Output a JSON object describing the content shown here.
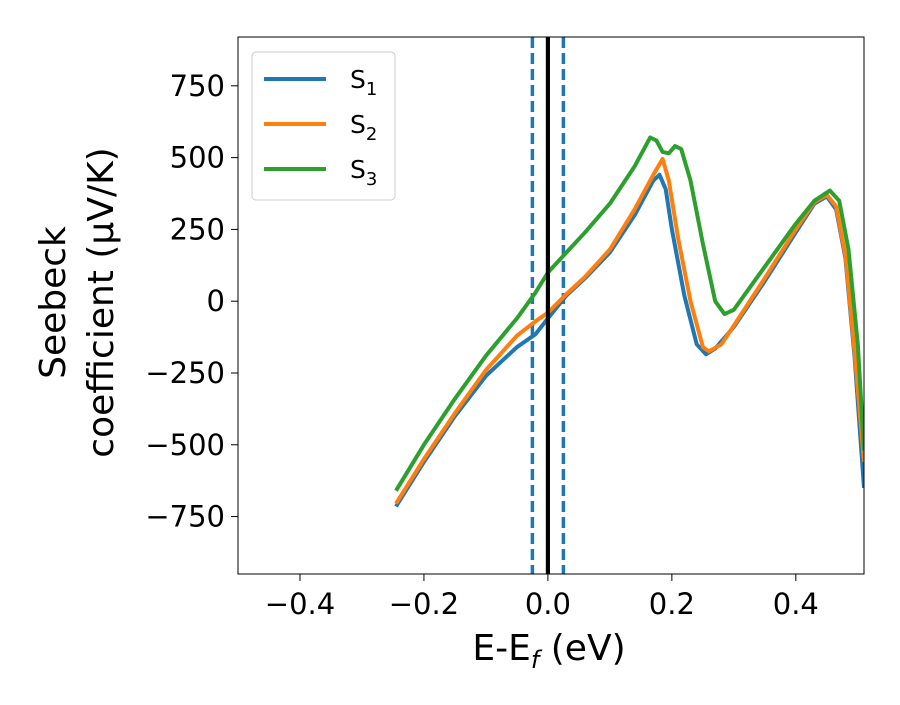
{
  "chart_data": {
    "type": "line",
    "title": "",
    "xlabel": "E-E",
    "xlabel_sub": "f",
    "xlabel_unit": " (eV)",
    "ylabel_line1": "Seebeck",
    "ylabel_line2": "coefficient  (μV/K)",
    "xlim": [
      -0.5,
      0.51
    ],
    "ylim": [
      -950,
      920
    ],
    "xticks": [
      -0.4,
      -0.2,
      0.0,
      0.2,
      0.4
    ],
    "xtick_labels": [
      "−0.4",
      "−0.2",
      "0.0",
      "0.2",
      "0.4"
    ],
    "yticks": [
      750,
      500,
      250,
      0,
      -250,
      -500,
      -750
    ],
    "ytick_labels": [
      "750",
      "500",
      "250",
      "0",
      "−250",
      "−500",
      "−750"
    ],
    "grid": false,
    "legend_position": "top-left",
    "series": [
      {
        "name": "S",
        "name_sub": "1",
        "color": "#1f77b4",
        "points": [
          [
            -0.245,
            -715
          ],
          [
            -0.2,
            -560
          ],
          [
            -0.15,
            -400
          ],
          [
            -0.1,
            -260
          ],
          [
            -0.05,
            -160
          ],
          [
            -0.02,
            -115
          ],
          [
            0.0,
            -60
          ],
          [
            0.03,
            20
          ],
          [
            0.06,
            80
          ],
          [
            0.1,
            170
          ],
          [
            0.14,
            300
          ],
          [
            0.17,
            420
          ],
          [
            0.18,
            440
          ],
          [
            0.19,
            390
          ],
          [
            0.2,
            250
          ],
          [
            0.22,
            20
          ],
          [
            0.24,
            -150
          ],
          [
            0.255,
            -185
          ],
          [
            0.27,
            -165
          ],
          [
            0.3,
            -90
          ],
          [
            0.35,
            70
          ],
          [
            0.4,
            240
          ],
          [
            0.43,
            340
          ],
          [
            0.45,
            365
          ],
          [
            0.465,
            320
          ],
          [
            0.48,
            150
          ],
          [
            0.495,
            -200
          ],
          [
            0.51,
            -650
          ]
        ]
      },
      {
        "name": "S",
        "name_sub": "2",
        "color": "#ff7f0e",
        "points": [
          [
            -0.245,
            -705
          ],
          [
            -0.2,
            -550
          ],
          [
            -0.15,
            -390
          ],
          [
            -0.1,
            -240
          ],
          [
            -0.05,
            -120
          ],
          [
            -0.02,
            -70
          ],
          [
            0.0,
            -40
          ],
          [
            0.03,
            25
          ],
          [
            0.06,
            85
          ],
          [
            0.1,
            180
          ],
          [
            0.14,
            320
          ],
          [
            0.17,
            440
          ],
          [
            0.185,
            495
          ],
          [
            0.195,
            420
          ],
          [
            0.21,
            220
          ],
          [
            0.23,
            0
          ],
          [
            0.25,
            -160
          ],
          [
            0.26,
            -175
          ],
          [
            0.28,
            -150
          ],
          [
            0.3,
            -85
          ],
          [
            0.35,
            80
          ],
          [
            0.4,
            250
          ],
          [
            0.43,
            345
          ],
          [
            0.45,
            370
          ],
          [
            0.465,
            330
          ],
          [
            0.48,
            160
          ],
          [
            0.495,
            -180
          ],
          [
            0.51,
            -560
          ]
        ]
      },
      {
        "name": "S",
        "name_sub": "3",
        "color": "#2ca02c",
        "points": [
          [
            -0.245,
            -660
          ],
          [
            -0.2,
            -500
          ],
          [
            -0.15,
            -340
          ],
          [
            -0.1,
            -190
          ],
          [
            -0.05,
            -60
          ],
          [
            -0.02,
            30
          ],
          [
            0.0,
            100
          ],
          [
            0.03,
            170
          ],
          [
            0.06,
            240
          ],
          [
            0.1,
            340
          ],
          [
            0.14,
            470
          ],
          [
            0.165,
            570
          ],
          [
            0.175,
            560
          ],
          [
            0.185,
            520
          ],
          [
            0.195,
            515
          ],
          [
            0.205,
            540
          ],
          [
            0.215,
            530
          ],
          [
            0.23,
            420
          ],
          [
            0.25,
            200
          ],
          [
            0.27,
            0
          ],
          [
            0.285,
            -45
          ],
          [
            0.3,
            -30
          ],
          [
            0.35,
            120
          ],
          [
            0.4,
            270
          ],
          [
            0.43,
            350
          ],
          [
            0.455,
            385
          ],
          [
            0.47,
            350
          ],
          [
            0.485,
            180
          ],
          [
            0.5,
            -150
          ],
          [
            0.51,
            -520
          ]
        ]
      }
    ],
    "vlines": [
      {
        "x": -0.025,
        "style": "dashed",
        "color": "#1f77b4"
      },
      {
        "x": 0.0,
        "style": "solid",
        "color": "#000000"
      },
      {
        "x": 0.025,
        "style": "dashed",
        "color": "#1f77b4"
      }
    ]
  }
}
